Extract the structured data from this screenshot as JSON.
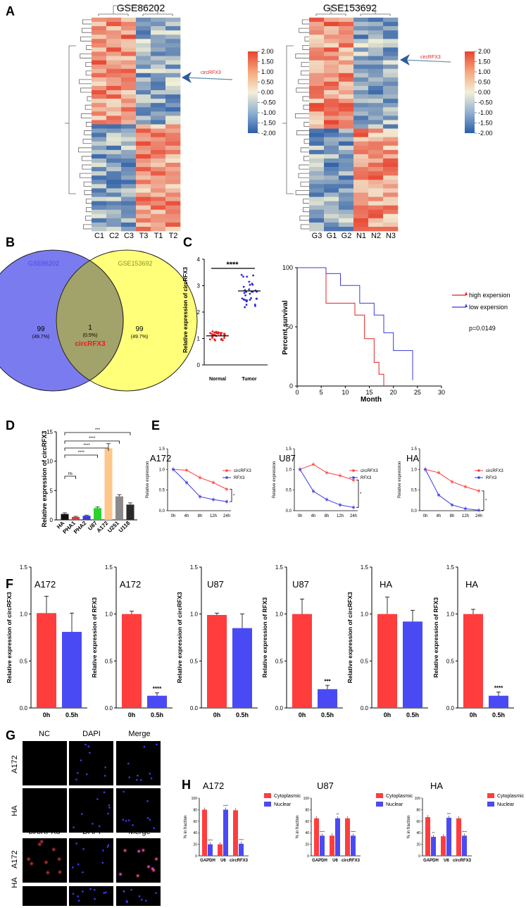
{
  "panel_letters": [
    "A",
    "B",
    "C",
    "D",
    "E",
    "F",
    "G",
    "H"
  ],
  "colors": {
    "red": "#ff3d3d",
    "blue": "#4a4af5",
    "venn_blue": "#7b7bf0",
    "venn_yellow": "#ffff7a",
    "venn_overlap": "#a2a26b",
    "hm_red": "#e8432f",
    "hm_blue": "#2c5ea8",
    "hm_mid": "#f3f0d6",
    "circ_red": "#e22020"
  },
  "panelA": {
    "left": {
      "title": "GSE86202",
      "columns": [
        "C1",
        "C2",
        "C3",
        "T3",
        "T1",
        "T2"
      ],
      "arrow_label": "circRFX3"
    },
    "right": {
      "title": "GSE153692",
      "columns": [
        "G3",
        "G1",
        "G2",
        "N1",
        "N2",
        "N3"
      ],
      "arrow_label": "circRFX3"
    },
    "colorbar_ticks": [
      "2.00",
      "1.50",
      "1.00",
      "0.50",
      "0.00",
      "-0.50",
      "-1.00",
      "-1.50",
      "-2.00"
    ]
  },
  "panelB": {
    "set1": {
      "name": "GSE86202",
      "count": "99",
      "pct": "(49.7%)"
    },
    "set2": {
      "name": "GSE153692",
      "count": "99",
      "pct": "(49.7%)"
    },
    "overlap": {
      "count": "1",
      "pct": "(0.5%)",
      "label": "circRFX3"
    }
  },
  "chart_data": [
    {
      "panel": "C-left",
      "type": "scatter",
      "ylabel": "Relative expression of circRFX3",
      "categories": [
        "Normal",
        "Tumor"
      ],
      "ylim": [
        0,
        4
      ],
      "yticks": [
        "0",
        "1",
        "2",
        "3",
        "4"
      ],
      "significance": "****",
      "group_means": [
        1.1,
        2.8
      ]
    },
    {
      "panel": "C-right",
      "type": "line",
      "title": "",
      "xlabel": "Month",
      "ylabel": "Percent survival",
      "xlim": [
        0,
        30
      ],
      "ylim": [
        0,
        100
      ],
      "xticks": [
        "0",
        "5",
        "10",
        "15",
        "20",
        "25",
        "30"
      ],
      "yticks": [
        "0",
        "50",
        "100"
      ],
      "pvalue": "p=0.0149",
      "series": [
        {
          "name": "high expersion",
          "x": [
            0,
            6,
            6,
            12,
            12,
            14,
            14,
            16,
            16,
            17,
            17,
            18,
            18
          ],
          "y": [
            100,
            100,
            70,
            70,
            60,
            60,
            40,
            40,
            20,
            20,
            10,
            10,
            0
          ]
        },
        {
          "name": "low expersion",
          "x": [
            0,
            6,
            6,
            9,
            9,
            13,
            13,
            16,
            16,
            18,
            18,
            20,
            20,
            24,
            24
          ],
          "y": [
            100,
            100,
            95,
            95,
            85,
            85,
            70,
            70,
            60,
            60,
            45,
            45,
            30,
            30,
            5
          ]
        }
      ]
    },
    {
      "panel": "D",
      "type": "bar",
      "ylabel": "Relative expression of circRFX3",
      "categories": [
        "HA",
        "PHA1",
        "PHA2",
        "U87",
        "A172",
        "U251",
        "U118"
      ],
      "values": [
        1.0,
        0.5,
        0.7,
        2.0,
        12.2,
        4.0,
        2.6
      ],
      "errors": [
        0.2,
        0.1,
        0.1,
        0.2,
        0.8,
        0.3,
        0.3
      ],
      "bar_colors": [
        "#111111",
        "#e03a3a",
        "#3a3ae0",
        "#2ed12e",
        "#ffc68a",
        "#8a8a8a",
        "#2a2a2a"
      ],
      "ylim": [
        0,
        15
      ],
      "yticks": [
        "0",
        "5",
        "10",
        "15"
      ],
      "brackets": [
        {
          "from": "HA",
          "to": "PHA1",
          "label": "ns"
        },
        {
          "from": "HA",
          "to": "U87",
          "label": "****"
        },
        {
          "from": "HA",
          "to": "A172",
          "label": "****"
        },
        {
          "from": "HA",
          "to": "U251",
          "label": "****"
        },
        {
          "from": "HA",
          "to": "U118",
          "label": "***"
        }
      ]
    },
    {
      "panel": "E",
      "type": "line",
      "ylabel": "Relative expression",
      "categories": [
        "0h",
        "4h",
        "8h",
        "12h",
        "24h"
      ],
      "ylim": [
        0,
        1.5
      ],
      "yticks": [
        "0.0",
        "0.5",
        "1.0",
        "1.5"
      ],
      "charts": [
        {
          "title": "A172",
          "series": [
            {
              "name": "circRFX3",
              "values": [
                1.0,
                0.98,
                0.8,
                0.68,
                0.52
              ]
            },
            {
              "name": "RFX3",
              "values": [
                1.0,
                0.68,
                0.34,
                0.27,
                0.22
              ]
            }
          ],
          "sig": "*"
        },
        {
          "title": "U87",
          "series": [
            {
              "name": "circRFX3",
              "values": [
                1.0,
                1.12,
                0.92,
                0.85,
                0.74
              ]
            },
            {
              "name": "RFX3",
              "values": [
                1.0,
                0.47,
                0.27,
                0.14,
                0.08
              ]
            }
          ],
          "sig": "*"
        },
        {
          "title": "HA",
          "series": [
            {
              "name": "circRFX3",
              "values": [
                1.0,
                0.92,
                0.7,
                0.58,
                0.48
              ]
            },
            {
              "name": "RFX3",
              "values": [
                1.0,
                0.38,
                0.14,
                0.05,
                0.01
              ]
            }
          ],
          "sig": "*"
        }
      ]
    },
    {
      "panel": "F",
      "type": "bar",
      "categories": [
        "0h",
        "0.5h"
      ],
      "ylim": [
        0,
        1.5
      ],
      "yticks": [
        "0.0",
        "0.5",
        "1.0",
        "1.5"
      ],
      "charts": [
        {
          "title": "A172",
          "ylabel": "Relative expression of circRFX3",
          "values": [
            1.01,
            0.81
          ],
          "errors": [
            0.18,
            0.2
          ],
          "sig": ""
        },
        {
          "title": "A172",
          "ylabel": "Relative expression of RFX3",
          "values": [
            1.0,
            0.13
          ],
          "errors": [
            0.03,
            0.03
          ],
          "sig": "****"
        },
        {
          "title": "U87",
          "ylabel": "Relative expression of circRFX3",
          "values": [
            0.99,
            0.85
          ],
          "errors": [
            0.02,
            0.15
          ],
          "sig": ""
        },
        {
          "title": "U87",
          "ylabel": "Relative expression of RFX3",
          "values": [
            1.0,
            0.2
          ],
          "errors": [
            0.16,
            0.04
          ],
          "sig": "***"
        },
        {
          "title": "HA",
          "ylabel": "Relative expression of circRFX3",
          "values": [
            1.0,
            0.92
          ],
          "errors": [
            0.18,
            0.12
          ],
          "sig": ""
        },
        {
          "title": "HA",
          "ylabel": "Relative expression of RFX3",
          "values": [
            1.0,
            0.13
          ],
          "errors": [
            0.05,
            0.04
          ],
          "sig": "****"
        }
      ]
    },
    {
      "panel": "H",
      "type": "bar",
      "ylabel": "% in fraction",
      "categories": [
        "GAPDH",
        "U6",
        "circRFX3"
      ],
      "legend": [
        "Cytoplasmic",
        "Nuclear"
      ],
      "ylim": [
        0,
        100
      ],
      "yticks": [
        "0",
        "20",
        "40",
        "60",
        "80",
        "100"
      ],
      "charts": [
        {
          "title": "A172",
          "cytoplasmic": [
            80,
            20,
            79
          ],
          "nuclear": [
            20,
            80,
            21
          ],
          "sig": [
            "****",
            "****",
            "****"
          ]
        },
        {
          "title": "U87",
          "cytoplasmic": [
            65,
            35,
            65
          ],
          "nuclear": [
            35,
            65,
            35
          ],
          "sig": [
            "****",
            "**",
            "****"
          ]
        },
        {
          "title": "HA",
          "cytoplasmic": [
            67,
            34,
            65
          ],
          "nuclear": [
            33,
            66,
            35
          ],
          "sig": [
            "**",
            "***",
            "****"
          ]
        }
      ]
    }
  ],
  "panelG": {
    "top_headers": [
      "NC",
      "DAPI",
      "Merge"
    ],
    "bottom_headers": [
      "circRFX3",
      "DAPI",
      "Merge"
    ],
    "top_rows": [
      "A172",
      "HA"
    ],
    "bottom_rows": [
      "A172",
      "HA"
    ]
  }
}
